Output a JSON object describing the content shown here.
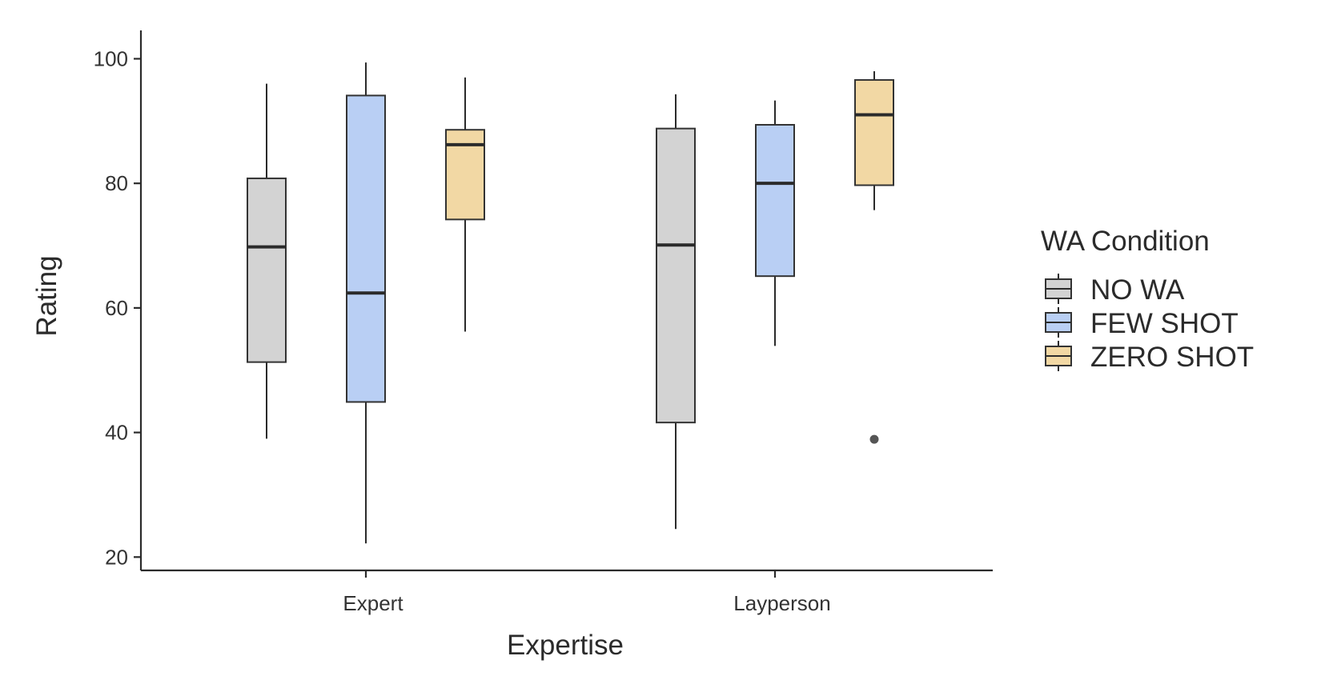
{
  "chart_data": {
    "type": "box",
    "xlabel": "Expertise",
    "ylabel": "Rating",
    "ylim": [
      18.5,
      102.5
    ],
    "yticks": [
      20,
      40,
      60,
      80,
      100
    ],
    "categories": [
      "Expert",
      "Layperson"
    ],
    "legend": {
      "title": "WA Condition",
      "placement": "right"
    },
    "series": [
      {
        "name": "NO WA",
        "color": "#d3d3d3",
        "boxes": [
          {
            "category": "Expert",
            "whisker_low": 39,
            "q1": 51.3,
            "median": 69.8,
            "q3": 80.8,
            "whisker_high": 96,
            "outliers": []
          },
          {
            "category": "Layperson",
            "whisker_low": 24.5,
            "q1": 41.6,
            "median": 70.1,
            "q3": 88.8,
            "whisker_high": 94.3,
            "outliers": []
          }
        ]
      },
      {
        "name": "FEW SHOT",
        "color": "#b9cff4",
        "boxes": [
          {
            "category": "Expert",
            "whisker_low": 22.2,
            "q1": 44.9,
            "median": 62.4,
            "q3": 94.1,
            "whisker_high": 99.4,
            "outliers": []
          },
          {
            "category": "Layperson",
            "whisker_low": 53.9,
            "q1": 65.1,
            "median": 80.0,
            "q3": 89.4,
            "whisker_high": 93.3,
            "outliers": []
          }
        ]
      },
      {
        "name": "ZERO SHOT",
        "color": "#f2d8a4",
        "boxes": [
          {
            "category": "Expert",
            "whisker_low": 56.2,
            "q1": 74.2,
            "median": 86.2,
            "q3": 88.6,
            "whisker_high": 97,
            "outliers": []
          },
          {
            "category": "Layperson",
            "whisker_low": 75.7,
            "q1": 79.7,
            "median": 91.0,
            "q3": 96.6,
            "whisker_high": 98,
            "outliers": [
              38.9
            ]
          }
        ]
      }
    ]
  }
}
